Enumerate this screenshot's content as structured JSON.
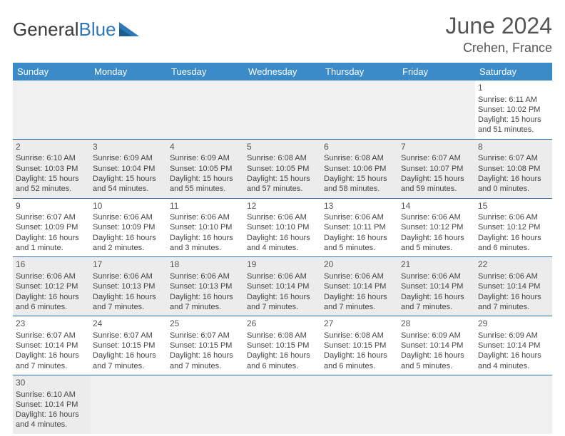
{
  "brand": {
    "part1": "General",
    "part2": "Blue",
    "logo_color": "#2e77b8"
  },
  "title": "June 2024",
  "location": "Crehen, France",
  "colors": {
    "header_bg": "#3b8bc9",
    "row_divider": "#2e6da8",
    "alt_row_bg": "#ececec",
    "blank_bg": "#f0f0f0"
  },
  "weekdays": [
    "Sunday",
    "Monday",
    "Tuesday",
    "Wednesday",
    "Thursday",
    "Friday",
    "Saturday"
  ],
  "weeks": [
    {
      "alt": false,
      "days": [
        null,
        null,
        null,
        null,
        null,
        null,
        {
          "d": "1",
          "sunrise": "Sunrise: 6:11 AM",
          "sunset": "Sunset: 10:02 PM",
          "dl1": "Daylight: 15 hours",
          "dl2": "and 51 minutes."
        }
      ]
    },
    {
      "alt": true,
      "days": [
        {
          "d": "2",
          "sunrise": "Sunrise: 6:10 AM",
          "sunset": "Sunset: 10:03 PM",
          "dl1": "Daylight: 15 hours",
          "dl2": "and 52 minutes."
        },
        {
          "d": "3",
          "sunrise": "Sunrise: 6:09 AM",
          "sunset": "Sunset: 10:04 PM",
          "dl1": "Daylight: 15 hours",
          "dl2": "and 54 minutes."
        },
        {
          "d": "4",
          "sunrise": "Sunrise: 6:09 AM",
          "sunset": "Sunset: 10:05 PM",
          "dl1": "Daylight: 15 hours",
          "dl2": "and 55 minutes."
        },
        {
          "d": "5",
          "sunrise": "Sunrise: 6:08 AM",
          "sunset": "Sunset: 10:05 PM",
          "dl1": "Daylight: 15 hours",
          "dl2": "and 57 minutes."
        },
        {
          "d": "6",
          "sunrise": "Sunrise: 6:08 AM",
          "sunset": "Sunset: 10:06 PM",
          "dl1": "Daylight: 15 hours",
          "dl2": "and 58 minutes."
        },
        {
          "d": "7",
          "sunrise": "Sunrise: 6:07 AM",
          "sunset": "Sunset: 10:07 PM",
          "dl1": "Daylight: 15 hours",
          "dl2": "and 59 minutes."
        },
        {
          "d": "8",
          "sunrise": "Sunrise: 6:07 AM",
          "sunset": "Sunset: 10:08 PM",
          "dl1": "Daylight: 16 hours",
          "dl2": "and 0 minutes."
        }
      ]
    },
    {
      "alt": false,
      "days": [
        {
          "d": "9",
          "sunrise": "Sunrise: 6:07 AM",
          "sunset": "Sunset: 10:09 PM",
          "dl1": "Daylight: 16 hours",
          "dl2": "and 1 minute."
        },
        {
          "d": "10",
          "sunrise": "Sunrise: 6:06 AM",
          "sunset": "Sunset: 10:09 PM",
          "dl1": "Daylight: 16 hours",
          "dl2": "and 2 minutes."
        },
        {
          "d": "11",
          "sunrise": "Sunrise: 6:06 AM",
          "sunset": "Sunset: 10:10 PM",
          "dl1": "Daylight: 16 hours",
          "dl2": "and 3 minutes."
        },
        {
          "d": "12",
          "sunrise": "Sunrise: 6:06 AM",
          "sunset": "Sunset: 10:10 PM",
          "dl1": "Daylight: 16 hours",
          "dl2": "and 4 minutes."
        },
        {
          "d": "13",
          "sunrise": "Sunrise: 6:06 AM",
          "sunset": "Sunset: 10:11 PM",
          "dl1": "Daylight: 16 hours",
          "dl2": "and 5 minutes."
        },
        {
          "d": "14",
          "sunrise": "Sunrise: 6:06 AM",
          "sunset": "Sunset: 10:12 PM",
          "dl1": "Daylight: 16 hours",
          "dl2": "and 5 minutes."
        },
        {
          "d": "15",
          "sunrise": "Sunrise: 6:06 AM",
          "sunset": "Sunset: 10:12 PM",
          "dl1": "Daylight: 16 hours",
          "dl2": "and 6 minutes."
        }
      ]
    },
    {
      "alt": true,
      "days": [
        {
          "d": "16",
          "sunrise": "Sunrise: 6:06 AM",
          "sunset": "Sunset: 10:12 PM",
          "dl1": "Daylight: 16 hours",
          "dl2": "and 6 minutes."
        },
        {
          "d": "17",
          "sunrise": "Sunrise: 6:06 AM",
          "sunset": "Sunset: 10:13 PM",
          "dl1": "Daylight: 16 hours",
          "dl2": "and 7 minutes."
        },
        {
          "d": "18",
          "sunrise": "Sunrise: 6:06 AM",
          "sunset": "Sunset: 10:13 PM",
          "dl1": "Daylight: 16 hours",
          "dl2": "and 7 minutes."
        },
        {
          "d": "19",
          "sunrise": "Sunrise: 6:06 AM",
          "sunset": "Sunset: 10:14 PM",
          "dl1": "Daylight: 16 hours",
          "dl2": "and 7 minutes."
        },
        {
          "d": "20",
          "sunrise": "Sunrise: 6:06 AM",
          "sunset": "Sunset: 10:14 PM",
          "dl1": "Daylight: 16 hours",
          "dl2": "and 7 minutes."
        },
        {
          "d": "21",
          "sunrise": "Sunrise: 6:06 AM",
          "sunset": "Sunset: 10:14 PM",
          "dl1": "Daylight: 16 hours",
          "dl2": "and 7 minutes."
        },
        {
          "d": "22",
          "sunrise": "Sunrise: 6:06 AM",
          "sunset": "Sunset: 10:14 PM",
          "dl1": "Daylight: 16 hours",
          "dl2": "and 7 minutes."
        }
      ]
    },
    {
      "alt": false,
      "days": [
        {
          "d": "23",
          "sunrise": "Sunrise: 6:07 AM",
          "sunset": "Sunset: 10:14 PM",
          "dl1": "Daylight: 16 hours",
          "dl2": "and 7 minutes."
        },
        {
          "d": "24",
          "sunrise": "Sunrise: 6:07 AM",
          "sunset": "Sunset: 10:15 PM",
          "dl1": "Daylight: 16 hours",
          "dl2": "and 7 minutes."
        },
        {
          "d": "25",
          "sunrise": "Sunrise: 6:07 AM",
          "sunset": "Sunset: 10:15 PM",
          "dl1": "Daylight: 16 hours",
          "dl2": "and 7 minutes."
        },
        {
          "d": "26",
          "sunrise": "Sunrise: 6:08 AM",
          "sunset": "Sunset: 10:15 PM",
          "dl1": "Daylight: 16 hours",
          "dl2": "and 6 minutes."
        },
        {
          "d": "27",
          "sunrise": "Sunrise: 6:08 AM",
          "sunset": "Sunset: 10:15 PM",
          "dl1": "Daylight: 16 hours",
          "dl2": "and 6 minutes."
        },
        {
          "d": "28",
          "sunrise": "Sunrise: 6:09 AM",
          "sunset": "Sunset: 10:14 PM",
          "dl1": "Daylight: 16 hours",
          "dl2": "and 5 minutes."
        },
        {
          "d": "29",
          "sunrise": "Sunrise: 6:09 AM",
          "sunset": "Sunset: 10:14 PM",
          "dl1": "Daylight: 16 hours",
          "dl2": "and 4 minutes."
        }
      ]
    },
    {
      "alt": true,
      "last": true,
      "days": [
        {
          "d": "30",
          "sunrise": "Sunrise: 6:10 AM",
          "sunset": "Sunset: 10:14 PM",
          "dl1": "Daylight: 16 hours",
          "dl2": "and 4 minutes."
        },
        null,
        null,
        null,
        null,
        null,
        null
      ]
    }
  ]
}
